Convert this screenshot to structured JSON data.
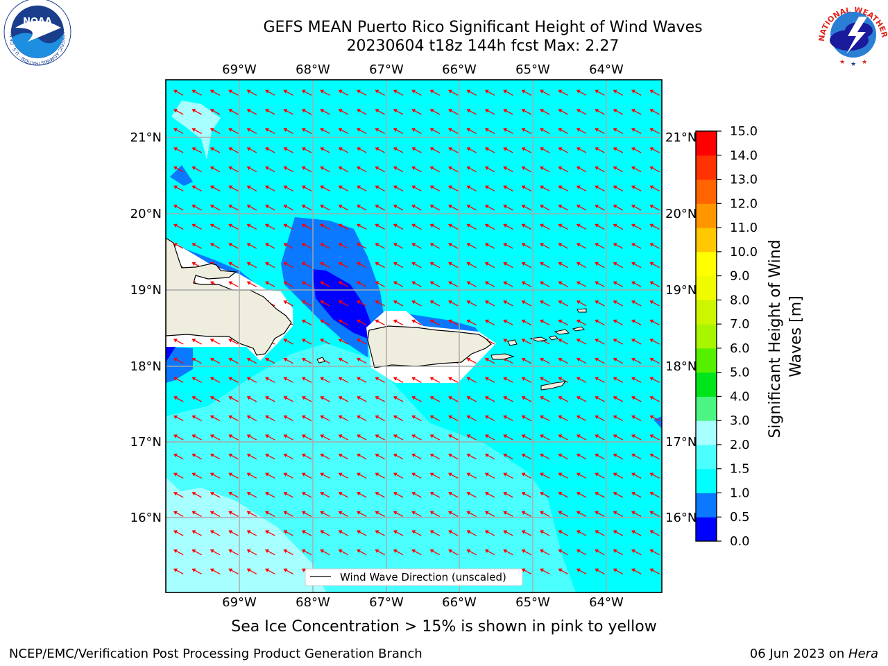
{
  "header": {
    "title_line1": "GEFS MEAN Puerto Rico Significant Height of Wind Waves",
    "title_line2": "20230604 t18z 144h fcst   Max: 2.27"
  },
  "logos": {
    "left": {
      "name": "NOAA",
      "ring_text": "NATIONAL OCEANIC AND ATMOSPHERIC ADMINISTRATION · U.S. DEPARTMENT OF COMMERCE"
    },
    "right": {
      "ring_text": "NATIONAL WEATHER SERVICE"
    }
  },
  "map": {
    "lon_labels": [
      "69°W",
      "68°W",
      "67°W",
      "66°W",
      "65°W",
      "64°W"
    ],
    "lat_labels": [
      "21°N",
      "20°N",
      "19°N",
      "18°N",
      "17°N",
      "16°N"
    ],
    "legend_label": "Wind Wave Direction (unscaled)",
    "arrow_color": "#ff0000",
    "land_color": "#efedde"
  },
  "colorbar": {
    "label": "Significant Height of Wind Waves [m]",
    "ticks": [
      "15.0",
      "14.0",
      "13.0",
      "12.0",
      "11.0",
      "10.0",
      "9.0",
      "8.0",
      "7.0",
      "6.0",
      "5.0",
      "4.0",
      "3.0",
      "2.0",
      "1.5",
      "1.0",
      "0.5",
      "0.0"
    ],
    "colors_bottom_to_top": [
      "#0000ff",
      "#0a78ff",
      "#00ffff",
      "#4cffff",
      "#a8ffff",
      "#4cf582",
      "#00e41c",
      "#54f000",
      "#a8f500",
      "#ccf500",
      "#f0fa00",
      "#ffff00",
      "#ffc800",
      "#ff9600",
      "#ff6400",
      "#ff3200",
      "#ff0000"
    ]
  },
  "footer": {
    "subtitle": "Sea Ice Concentration > 15% is shown in pink to yellow",
    "left": "NCEP/EMC/Verification Post Processing Product Generation Branch",
    "right_date": "06 Jun 2023 on ",
    "right_host": "Hera"
  }
}
